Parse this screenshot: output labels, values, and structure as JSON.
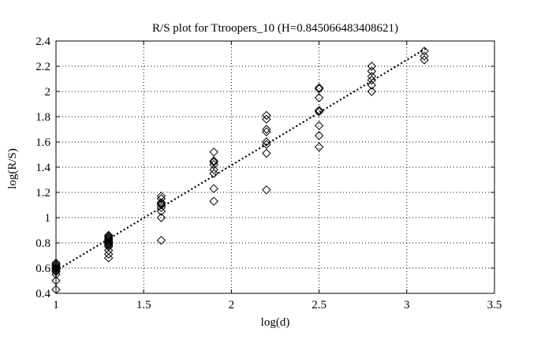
{
  "chart_data": {
    "type": "scatter",
    "title": "R/S plot for Ttroopers_10 (H=0.845066483408621)",
    "xlabel": "log(d)",
    "ylabel": "log(R/S)",
    "xlim": [
      1,
      3.5
    ],
    "ylim": [
      0.4,
      2.4
    ],
    "x_ticks": [
      1,
      1.5,
      2,
      2.5,
      3,
      3.5
    ],
    "x_tick_labels": [
      "1",
      "1.5",
      "2",
      "2.5",
      "3",
      "3.5"
    ],
    "y_ticks": [
      0.4,
      0.6,
      0.8,
      1,
      1.2,
      1.4,
      1.6,
      1.8,
      2,
      2.2,
      2.4
    ],
    "y_tick_labels": [
      "0.4",
      "0.6",
      "0.8",
      "1",
      "1.2",
      "1.4",
      "1.6",
      "1.8",
      "2",
      "2.2",
      "2.4"
    ],
    "grid": true,
    "marker": "diamond",
    "points": [
      [
        1,
        0.43
      ],
      [
        1,
        0.5
      ],
      [
        1,
        0.55
      ],
      [
        1,
        0.57
      ],
      [
        1,
        0.58
      ],
      [
        1,
        0.59
      ],
      [
        1,
        0.6
      ],
      [
        1,
        0.61
      ],
      [
        1,
        0.62
      ],
      [
        1,
        0.63
      ],
      [
        1,
        0.64
      ],
      [
        1.3,
        0.68
      ],
      [
        1.3,
        0.71
      ],
      [
        1.3,
        0.74
      ],
      [
        1.3,
        0.77
      ],
      [
        1.3,
        0.78
      ],
      [
        1.3,
        0.79
      ],
      [
        1.3,
        0.8
      ],
      [
        1.3,
        0.81
      ],
      [
        1.3,
        0.82
      ],
      [
        1.3,
        0.83
      ],
      [
        1.3,
        0.84
      ],
      [
        1.3,
        0.85
      ],
      [
        1.3,
        0.86
      ],
      [
        1.6,
        0.82
      ],
      [
        1.6,
        1.0
      ],
      [
        1.6,
        1.05
      ],
      [
        1.6,
        1.08
      ],
      [
        1.6,
        1.1
      ],
      [
        1.6,
        1.11
      ],
      [
        1.6,
        1.12
      ],
      [
        1.6,
        1.15
      ],
      [
        1.6,
        1.17
      ],
      [
        1.9,
        1.13
      ],
      [
        1.9,
        1.23
      ],
      [
        1.9,
        1.35
      ],
      [
        1.9,
        1.38
      ],
      [
        1.9,
        1.42
      ],
      [
        1.9,
        1.44
      ],
      [
        1.9,
        1.45
      ],
      [
        1.9,
        1.52
      ],
      [
        2.2,
        1.22
      ],
      [
        2.2,
        1.51
      ],
      [
        2.2,
        1.58
      ],
      [
        2.2,
        1.6
      ],
      [
        2.2,
        1.68
      ],
      [
        2.2,
        1.7
      ],
      [
        2.2,
        1.78
      ],
      [
        2.2,
        1.81
      ],
      [
        2.5,
        1.56
      ],
      [
        2.5,
        1.65
      ],
      [
        2.5,
        1.73
      ],
      [
        2.5,
        1.84
      ],
      [
        2.5,
        1.85
      ],
      [
        2.5,
        1.95
      ],
      [
        2.5,
        2.02
      ],
      [
        2.5,
        2.03
      ],
      [
        2.8,
        2.0
      ],
      [
        2.8,
        2.05
      ],
      [
        2.8,
        2.09
      ],
      [
        2.8,
        2.12
      ],
      [
        2.8,
        2.16
      ],
      [
        2.8,
        2.2
      ],
      [
        3.1,
        2.25
      ],
      [
        3.1,
        2.28
      ],
      [
        3.1,
        2.32
      ]
    ],
    "fit_line": {
      "x": [
        1,
        3.12
      ],
      "y": [
        0.58,
        2.35
      ]
    }
  }
}
